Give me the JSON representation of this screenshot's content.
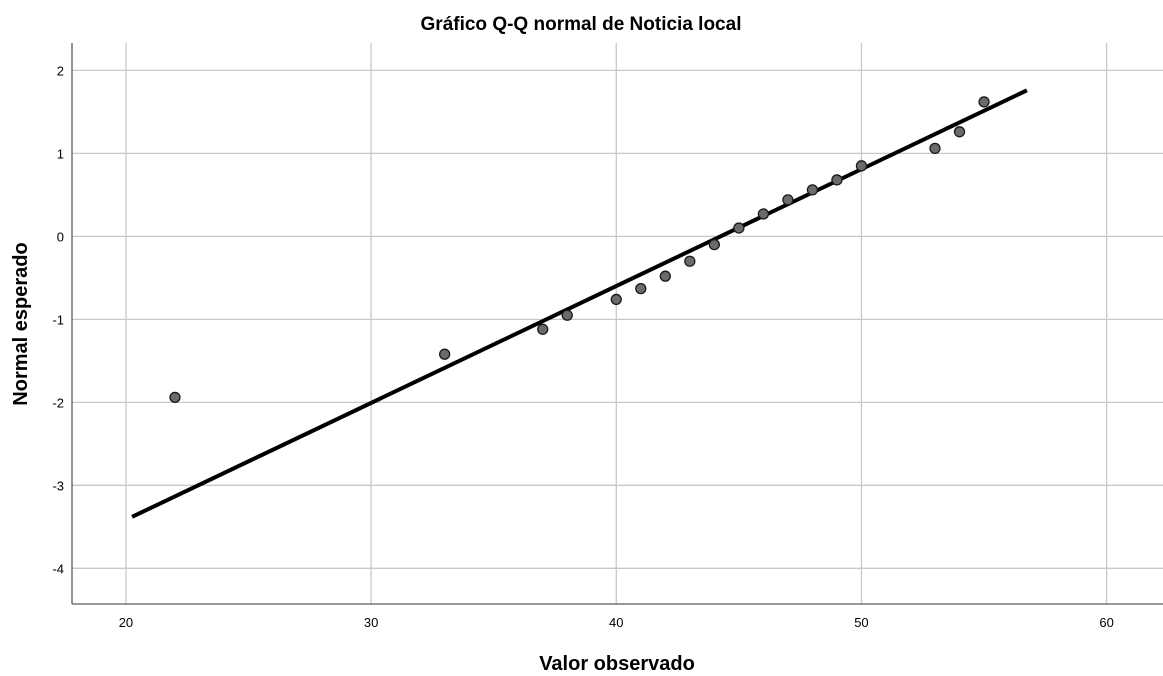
{
  "chart_data": {
    "type": "scatter",
    "title": "Gráfico Q-Q normal de Noticia local",
    "xlabel": "Valor observado",
    "ylabel": "Normal esperado",
    "xlim": [
      17.8,
      62.3
    ],
    "ylim": [
      -4.43,
      2.33
    ],
    "xticks": [
      20,
      30,
      40,
      50,
      60
    ],
    "yticks": [
      2,
      1,
      0,
      -1,
      -2,
      -3,
      -4
    ],
    "grid": true,
    "legend": "none",
    "colors": {
      "points": "#6b6b6b",
      "point_edge": "#1a1a1a",
      "line": "#000000",
      "grid": "#c8c8c8"
    },
    "points": [
      {
        "x": 22,
        "y": -1.94
      },
      {
        "x": 33,
        "y": -1.42
      },
      {
        "x": 37,
        "y": -1.12
      },
      {
        "x": 38,
        "y": -0.95
      },
      {
        "x": 40,
        "y": -0.76
      },
      {
        "x": 41,
        "y": -0.63
      },
      {
        "x": 42,
        "y": -0.48
      },
      {
        "x": 43,
        "y": -0.3
      },
      {
        "x": 44,
        "y": -0.1
      },
      {
        "x": 45,
        "y": 0.1
      },
      {
        "x": 46,
        "y": 0.27
      },
      {
        "x": 47,
        "y": 0.44
      },
      {
        "x": 48,
        "y": 0.56
      },
      {
        "x": 49,
        "y": 0.68
      },
      {
        "x": 50,
        "y": 0.85
      },
      {
        "x": 53,
        "y": 1.06
      },
      {
        "x": 54,
        "y": 1.26
      },
      {
        "x": 55,
        "y": 1.62
      }
    ],
    "reference_line": {
      "x": [
        20.25,
        56.75
      ],
      "y": [
        -3.38,
        1.76
      ]
    }
  }
}
